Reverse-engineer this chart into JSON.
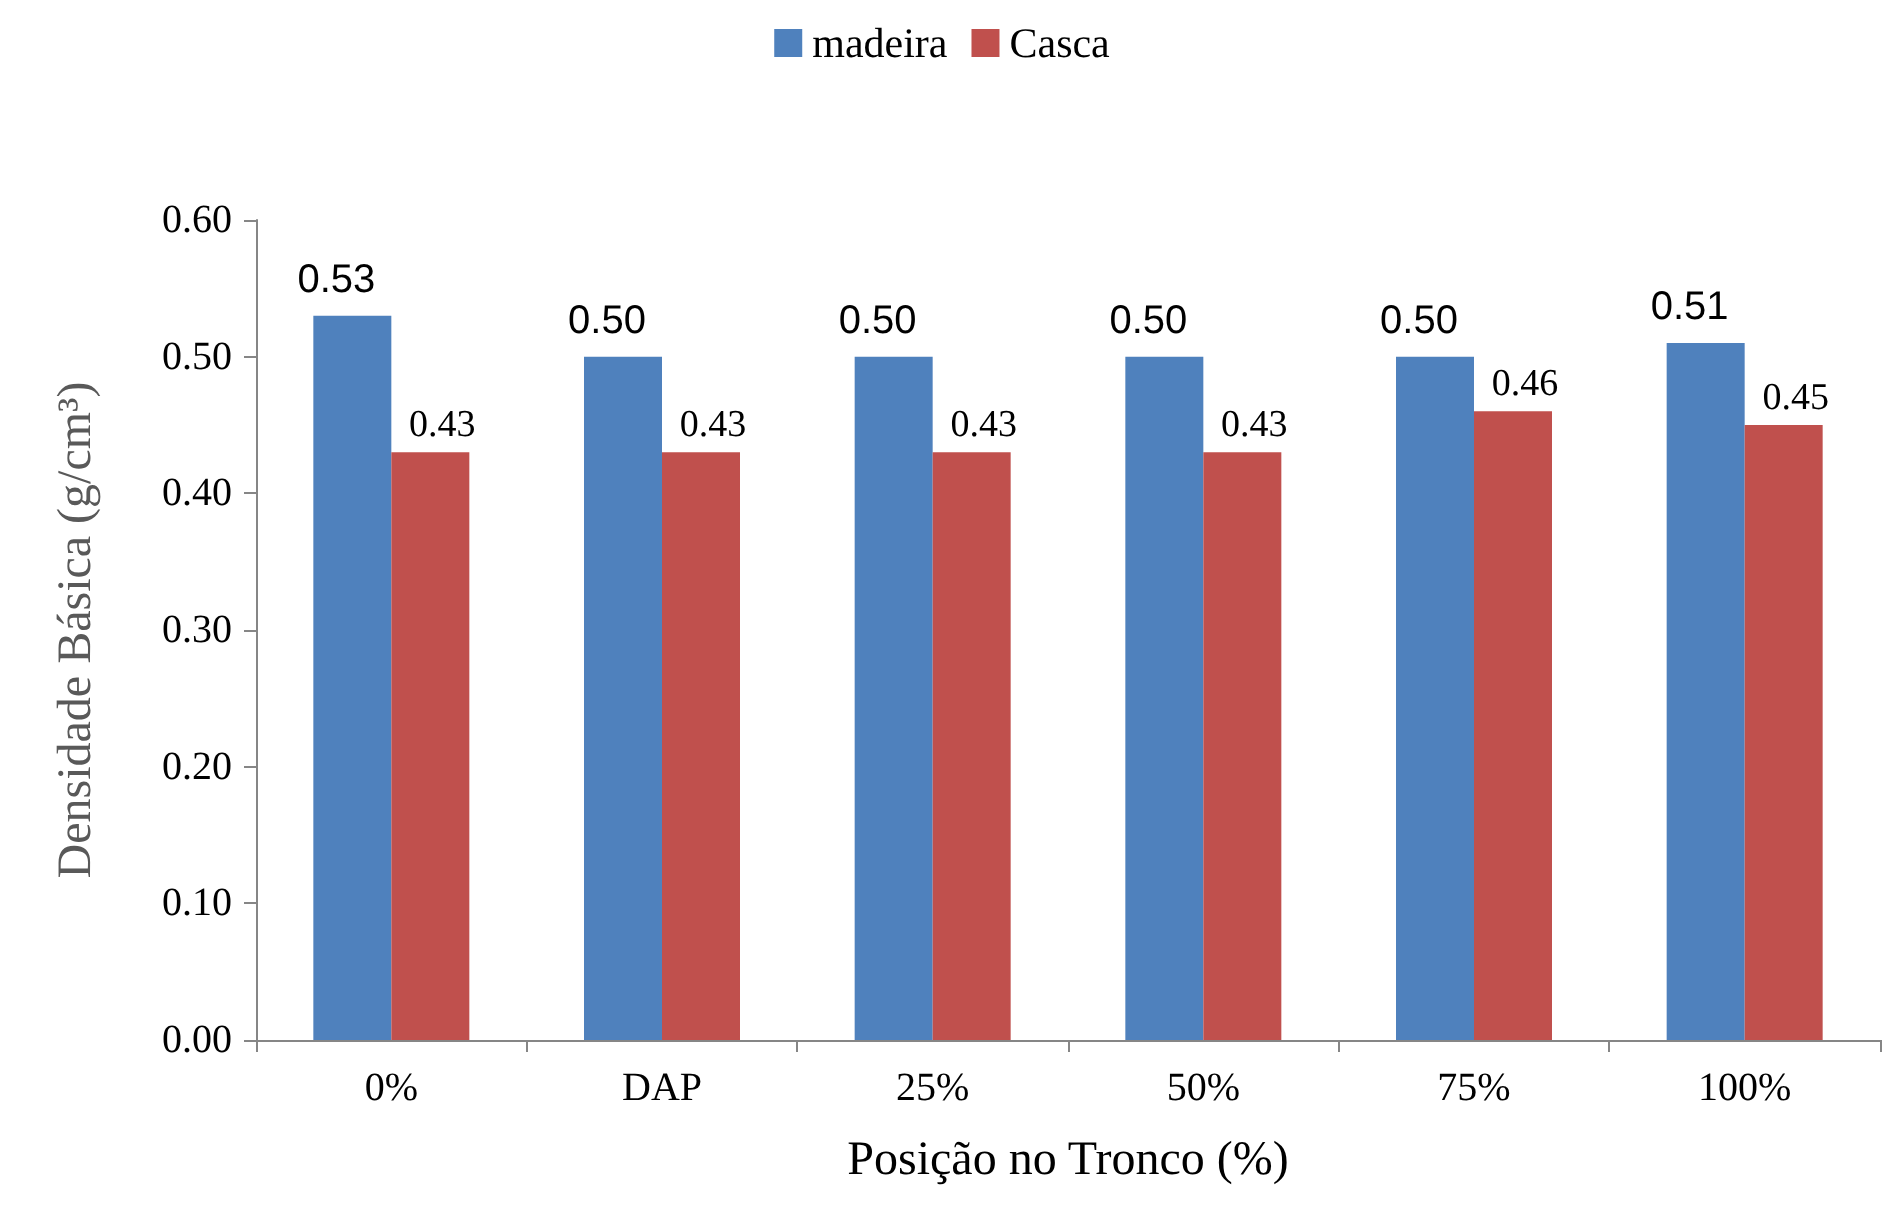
{
  "chart_data": {
    "type": "bar",
    "xlabel": "Posição no Tronco (%)",
    "ylabel": "Densidade Básica (g/cm³)",
    "categories": [
      "0%",
      "DAP",
      "25%",
      "50%",
      "75%",
      "100%"
    ],
    "series": [
      {
        "name": "madeira",
        "color": "#4f81bd",
        "values": [
          0.53,
          0.5,
          0.5,
          0.5,
          0.5,
          0.51
        ],
        "value_labels": [
          "0.53",
          "0.50",
          "0.50",
          "0.50",
          "0.50",
          "0.51"
        ]
      },
      {
        "name": "Casca",
        "color": "#c0504d",
        "values": [
          0.43,
          0.43,
          0.43,
          0.43,
          0.46,
          0.45
        ],
        "value_labels": [
          "0.43",
          "0.43",
          "0.43",
          "0.43",
          "0.46",
          "0.45"
        ]
      }
    ],
    "ylim": [
      0,
      0.6
    ],
    "yticks": [
      {
        "value": 0,
        "label": "0.00"
      },
      {
        "value": 0.1,
        "label": "0.10"
      },
      {
        "value": 0.2,
        "label": "0.20"
      },
      {
        "value": 0.3,
        "label": "0.30"
      },
      {
        "value": 0.4,
        "label": "0.40"
      },
      {
        "value": 0.5,
        "label": "0.50"
      },
      {
        "value": 0.6,
        "label": "0.60"
      }
    ],
    "grid": false,
    "legend": "top"
  }
}
